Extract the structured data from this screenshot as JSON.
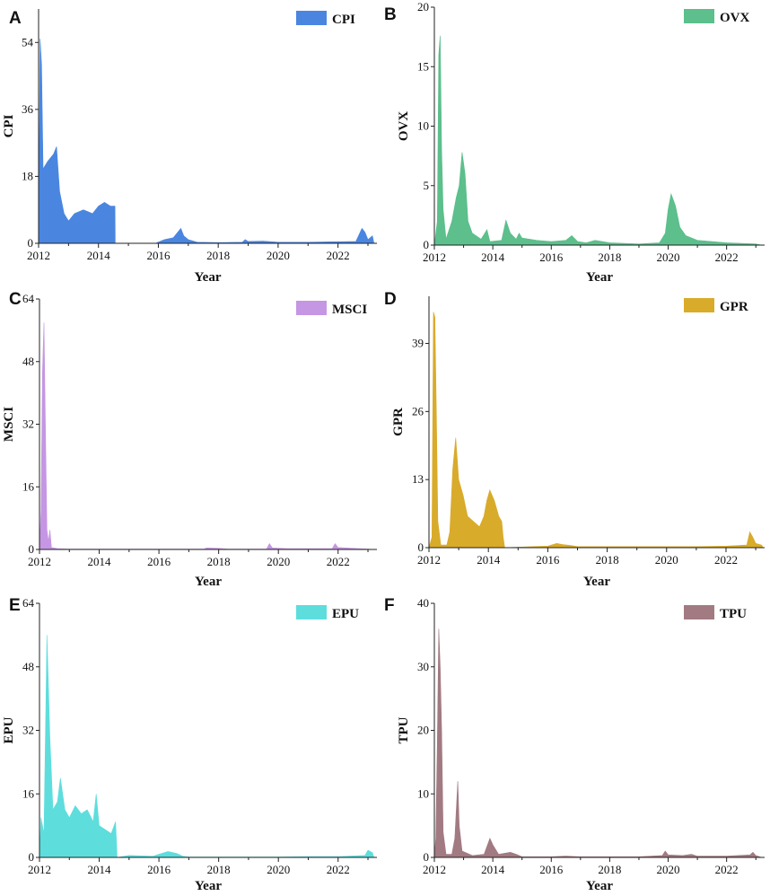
{
  "figure": {
    "xlabel": "Year"
  },
  "chart_data": [
    {
      "type": "area",
      "panel": "A",
      "legend": "CPI",
      "ylabel": "CPI",
      "xlabel": "Year",
      "color": "#4a86e0",
      "xlim": [
        2012,
        2023.3
      ],
      "ylim": [
        0,
        63
      ],
      "x_ticks": [
        2012,
        2014,
        2016,
        2018,
        2020,
        2022
      ],
      "y_ticks": [
        0,
        18,
        36,
        54
      ],
      "points": [
        [
          2012.0,
          0
        ],
        [
          2012.05,
          55
        ],
        [
          2012.1,
          48
        ],
        [
          2012.15,
          20
        ],
        [
          2012.3,
          22
        ],
        [
          2012.5,
          24
        ],
        [
          2012.6,
          26
        ],
        [
          2012.7,
          14
        ],
        [
          2012.85,
          8
        ],
        [
          2013.0,
          6
        ],
        [
          2013.2,
          8
        ],
        [
          2013.5,
          9
        ],
        [
          2013.8,
          8
        ],
        [
          2014.0,
          10
        ],
        [
          2014.2,
          11
        ],
        [
          2014.4,
          10
        ],
        [
          2014.55,
          10
        ],
        [
          2014.56,
          0
        ],
        [
          2015.9,
          0
        ],
        [
          2016.2,
          1
        ],
        [
          2016.5,
          1.5
        ],
        [
          2016.75,
          4
        ],
        [
          2016.85,
          2
        ],
        [
          2017.0,
          1
        ],
        [
          2017.3,
          0.3
        ],
        [
          2018.0,
          0.2
        ],
        [
          2018.8,
          0.3
        ],
        [
          2018.9,
          1
        ],
        [
          2019.0,
          0.5
        ],
        [
          2019.5,
          0.6
        ],
        [
          2020.0,
          0.3
        ],
        [
          2021.0,
          0.3
        ],
        [
          2021.8,
          0.4
        ],
        [
          2022.6,
          0.5
        ],
        [
          2022.8,
          4
        ],
        [
          2022.9,
          3
        ],
        [
          2023.0,
          1
        ],
        [
          2023.15,
          2
        ],
        [
          2023.2,
          0
        ]
      ]
    },
    {
      "type": "area",
      "panel": "B",
      "legend": "OVX",
      "ylabel": "OVX",
      "xlabel": "Year",
      "color": "#5cbf8c",
      "xlim": [
        2012,
        2023.3
      ],
      "ylim": [
        0,
        20
      ],
      "x_ticks": [
        2012,
        2014,
        2016,
        2018,
        2020,
        2022
      ],
      "y_ticks": [
        0,
        5,
        10,
        15,
        20
      ],
      "points": [
        [
          2012.0,
          0
        ],
        [
          2012.1,
          2
        ],
        [
          2012.15,
          16
        ],
        [
          2012.2,
          17.6
        ],
        [
          2012.25,
          8
        ],
        [
          2012.3,
          3
        ],
        [
          2012.4,
          0.5
        ],
        [
          2012.6,
          2
        ],
        [
          2012.75,
          4
        ],
        [
          2012.85,
          5
        ],
        [
          2012.95,
          7.8
        ],
        [
          2013.05,
          6
        ],
        [
          2013.15,
          2
        ],
        [
          2013.3,
          1
        ],
        [
          2013.6,
          0.5
        ],
        [
          2013.8,
          1.3
        ],
        [
          2013.9,
          0.3
        ],
        [
          2014.3,
          0.4
        ],
        [
          2014.45,
          2.1
        ],
        [
          2014.6,
          1
        ],
        [
          2014.8,
          0.5
        ],
        [
          2014.9,
          1
        ],
        [
          2015.0,
          0.6
        ],
        [
          2015.5,
          0.4
        ],
        [
          2016.0,
          0.3
        ],
        [
          2016.5,
          0.4
        ],
        [
          2016.7,
          0.8
        ],
        [
          2016.9,
          0.3
        ],
        [
          2017.2,
          0.2
        ],
        [
          2017.5,
          0.4
        ],
        [
          2018.0,
          0.2
        ],
        [
          2019.0,
          0.1
        ],
        [
          2019.7,
          0.2
        ],
        [
          2019.9,
          1
        ],
        [
          2020.0,
          3
        ],
        [
          2020.1,
          4.3
        ],
        [
          2020.25,
          3.3
        ],
        [
          2020.4,
          1.5
        ],
        [
          2020.6,
          0.8
        ],
        [
          2021.0,
          0.4
        ],
        [
          2021.5,
          0.3
        ],
        [
          2022.0,
          0.2
        ],
        [
          2023.0,
          0.1
        ],
        [
          2023.2,
          0
        ]
      ]
    },
    {
      "type": "area",
      "panel": "C",
      "legend": "MSCI",
      "ylabel": "MSCI",
      "xlabel": "Year",
      "color": "#c596e4",
      "xlim": [
        2012,
        2023.3
      ],
      "ylim": [
        0,
        64
      ],
      "x_ticks": [
        2012,
        2014,
        2016,
        2018,
        2020,
        2022
      ],
      "y_ticks": [
        0,
        16,
        32,
        48,
        64
      ],
      "points": [
        [
          2012.0,
          0
        ],
        [
          2012.05,
          10
        ],
        [
          2012.1,
          45
        ],
        [
          2012.15,
          58
        ],
        [
          2012.2,
          30
        ],
        [
          2012.25,
          5
        ],
        [
          2012.3,
          2
        ],
        [
          2012.35,
          5
        ],
        [
          2012.4,
          0.5
        ],
        [
          2012.6,
          0.2
        ],
        [
          2013.0,
          0.1
        ],
        [
          2017.5,
          0.1
        ],
        [
          2017.6,
          0.4
        ],
        [
          2018.0,
          0.3
        ],
        [
          2018.3,
          0.1
        ],
        [
          2019.6,
          0.1
        ],
        [
          2019.7,
          1.5
        ],
        [
          2019.8,
          0.4
        ],
        [
          2020.3,
          0.2
        ],
        [
          2021.8,
          0.2
        ],
        [
          2021.9,
          1.5
        ],
        [
          2022.0,
          0.5
        ],
        [
          2022.5,
          0.3
        ],
        [
          2023.0,
          0.1
        ],
        [
          2023.2,
          0
        ]
      ]
    },
    {
      "type": "area",
      "panel": "D",
      "legend": "GPR",
      "ylabel": "GPR",
      "xlabel": "Year",
      "color": "#d9ab2b",
      "xlim": [
        2012,
        2023.3
      ],
      "ylim": [
        0,
        48
      ],
      "x_ticks": [
        2012,
        2014,
        2016,
        2018,
        2020,
        2022
      ],
      "y_ticks": [
        0,
        13,
        26,
        39
      ],
      "points": [
        [
          2012.0,
          0
        ],
        [
          2012.1,
          2
        ],
        [
          2012.15,
          45
        ],
        [
          2012.2,
          44
        ],
        [
          2012.25,
          25
        ],
        [
          2012.3,
          5
        ],
        [
          2012.4,
          0.5
        ],
        [
          2012.6,
          0.5
        ],
        [
          2012.7,
          3
        ],
        [
          2012.8,
          15
        ],
        [
          2012.9,
          21
        ],
        [
          2013.0,
          13
        ],
        [
          2013.15,
          10
        ],
        [
          2013.3,
          6
        ],
        [
          2013.5,
          5
        ],
        [
          2013.7,
          4
        ],
        [
          2013.85,
          6
        ],
        [
          2013.95,
          9
        ],
        [
          2014.05,
          11
        ],
        [
          2014.2,
          9
        ],
        [
          2014.35,
          6
        ],
        [
          2014.45,
          5
        ],
        [
          2014.5,
          2
        ],
        [
          2014.55,
          0
        ],
        [
          2015.5,
          0.2
        ],
        [
          2016.0,
          0.3
        ],
        [
          2016.3,
          0.8
        ],
        [
          2016.5,
          0.6
        ],
        [
          2016.8,
          0.4
        ],
        [
          2017.0,
          0.2
        ],
        [
          2018.0,
          0.2
        ],
        [
          2019.0,
          0.2
        ],
        [
          2020.0,
          0.2
        ],
        [
          2021.0,
          0.2
        ],
        [
          2022.0,
          0.3
        ],
        [
          2022.7,
          0.5
        ],
        [
          2022.8,
          3
        ],
        [
          2022.9,
          2
        ],
        [
          2023.0,
          0.8
        ],
        [
          2023.2,
          0.5
        ],
        [
          2023.25,
          0
        ]
      ]
    },
    {
      "type": "area",
      "panel": "E",
      "legend": "EPU",
      "ylabel": "EPU",
      "xlabel": "Year",
      "color": "#5edddd",
      "xlim": [
        2012,
        2023.3
      ],
      "ylim": [
        0,
        64
      ],
      "x_ticks": [
        2012,
        2014,
        2016,
        2018,
        2020,
        2022
      ],
      "y_ticks": [
        0,
        16,
        32,
        48,
        64
      ],
      "points": [
        [
          2012.0,
          0
        ],
        [
          2012.05,
          10
        ],
        [
          2012.15,
          6
        ],
        [
          2012.25,
          56
        ],
        [
          2012.35,
          30
        ],
        [
          2012.45,
          12
        ],
        [
          2012.6,
          14
        ],
        [
          2012.7,
          20
        ],
        [
          2012.85,
          12
        ],
        [
          2013.0,
          10
        ],
        [
          2013.2,
          13
        ],
        [
          2013.4,
          11
        ],
        [
          2013.6,
          12
        ],
        [
          2013.8,
          9
        ],
        [
          2013.9,
          16
        ],
        [
          2014.0,
          8
        ],
        [
          2014.2,
          7
        ],
        [
          2014.4,
          6
        ],
        [
          2014.55,
          9
        ],
        [
          2014.6,
          0
        ],
        [
          2015.0,
          0.5
        ],
        [
          2015.8,
          0.3
        ],
        [
          2016.0,
          0.8
        ],
        [
          2016.3,
          1.5
        ],
        [
          2016.6,
          1
        ],
        [
          2016.8,
          0.3
        ],
        [
          2017.0,
          0.1
        ],
        [
          2018.0,
          0.1
        ],
        [
          2019.0,
          0.1
        ],
        [
          2020.0,
          0.1
        ],
        [
          2021.0,
          0.2
        ],
        [
          2022.0,
          0.2
        ],
        [
          2022.9,
          0.5
        ],
        [
          2023.0,
          1.8
        ],
        [
          2023.15,
          1.2
        ],
        [
          2023.2,
          0
        ]
      ]
    },
    {
      "type": "area",
      "panel": "F",
      "legend": "TPU",
      "ylabel": "TPU",
      "xlabel": "Year",
      "color": "#a27a82",
      "xlim": [
        2012,
        2023.3
      ],
      "ylim": [
        0,
        40
      ],
      "x_ticks": [
        2012,
        2014,
        2016,
        2018,
        2020,
        2022
      ],
      "y_ticks": [
        0,
        10,
        20,
        30,
        40
      ],
      "points": [
        [
          2012.0,
          0
        ],
        [
          2012.05,
          3
        ],
        [
          2012.1,
          18
        ],
        [
          2012.15,
          36
        ],
        [
          2012.2,
          30
        ],
        [
          2012.25,
          20
        ],
        [
          2012.3,
          4
        ],
        [
          2012.4,
          0.5
        ],
        [
          2012.6,
          0.5
        ],
        [
          2012.7,
          3
        ],
        [
          2012.8,
          12
        ],
        [
          2012.85,
          5
        ],
        [
          2012.95,
          1
        ],
        [
          2013.3,
          0.3
        ],
        [
          2013.7,
          0.5
        ],
        [
          2013.9,
          3
        ],
        [
          2014.0,
          2
        ],
        [
          2014.2,
          0.5
        ],
        [
          2014.6,
          0.8
        ],
        [
          2014.8,
          0.5
        ],
        [
          2015.0,
          0.1
        ],
        [
          2016.0,
          0.1
        ],
        [
          2016.5,
          0.2
        ],
        [
          2017.0,
          0.1
        ],
        [
          2018.0,
          0.1
        ],
        [
          2019.0,
          0.1
        ],
        [
          2019.8,
          0.3
        ],
        [
          2019.9,
          1
        ],
        [
          2020.0,
          0.4
        ],
        [
          2020.5,
          0.3
        ],
        [
          2020.8,
          0.5
        ],
        [
          2021.0,
          0.2
        ],
        [
          2022.0,
          0.2
        ],
        [
          2022.8,
          0.4
        ],
        [
          2022.9,
          0.8
        ],
        [
          2023.0,
          0.3
        ],
        [
          2023.2,
          0
        ]
      ]
    }
  ]
}
